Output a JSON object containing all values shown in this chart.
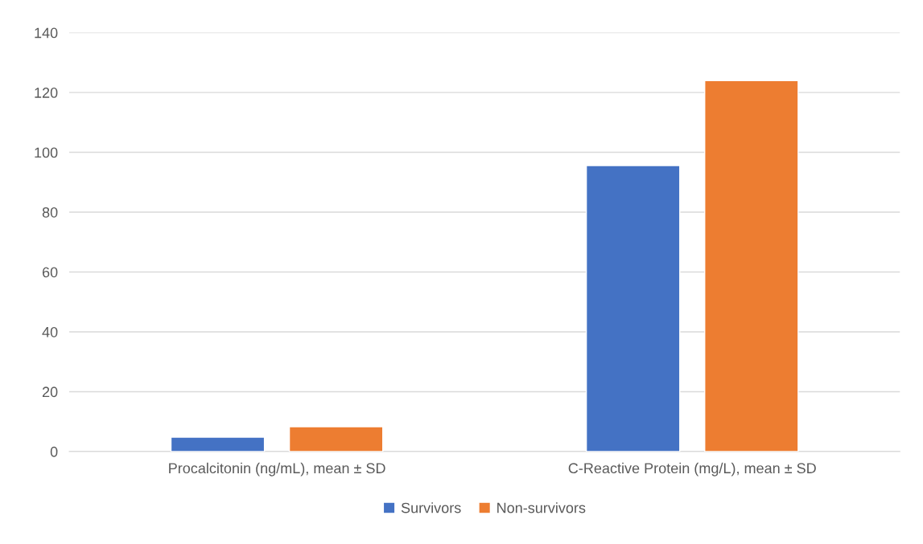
{
  "chart_data": {
    "type": "bar",
    "categories": [
      "Procalcitonin (ng/mL), mean ± SD",
      "C-Reactive Protein (mg/L), mean ± SD"
    ],
    "series": [
      {
        "name": "Survivors",
        "color": "#4472c4",
        "values": [
          4.8,
          95.6
        ]
      },
      {
        "name": "Non-survivors",
        "color": "#ed7d31",
        "values": [
          8.3,
          124
        ]
      }
    ],
    "ylim": [
      0,
      140
    ],
    "yticks": [
      0,
      20,
      40,
      60,
      80,
      100,
      120,
      140
    ],
    "grid": "y",
    "legend": "bottom"
  }
}
